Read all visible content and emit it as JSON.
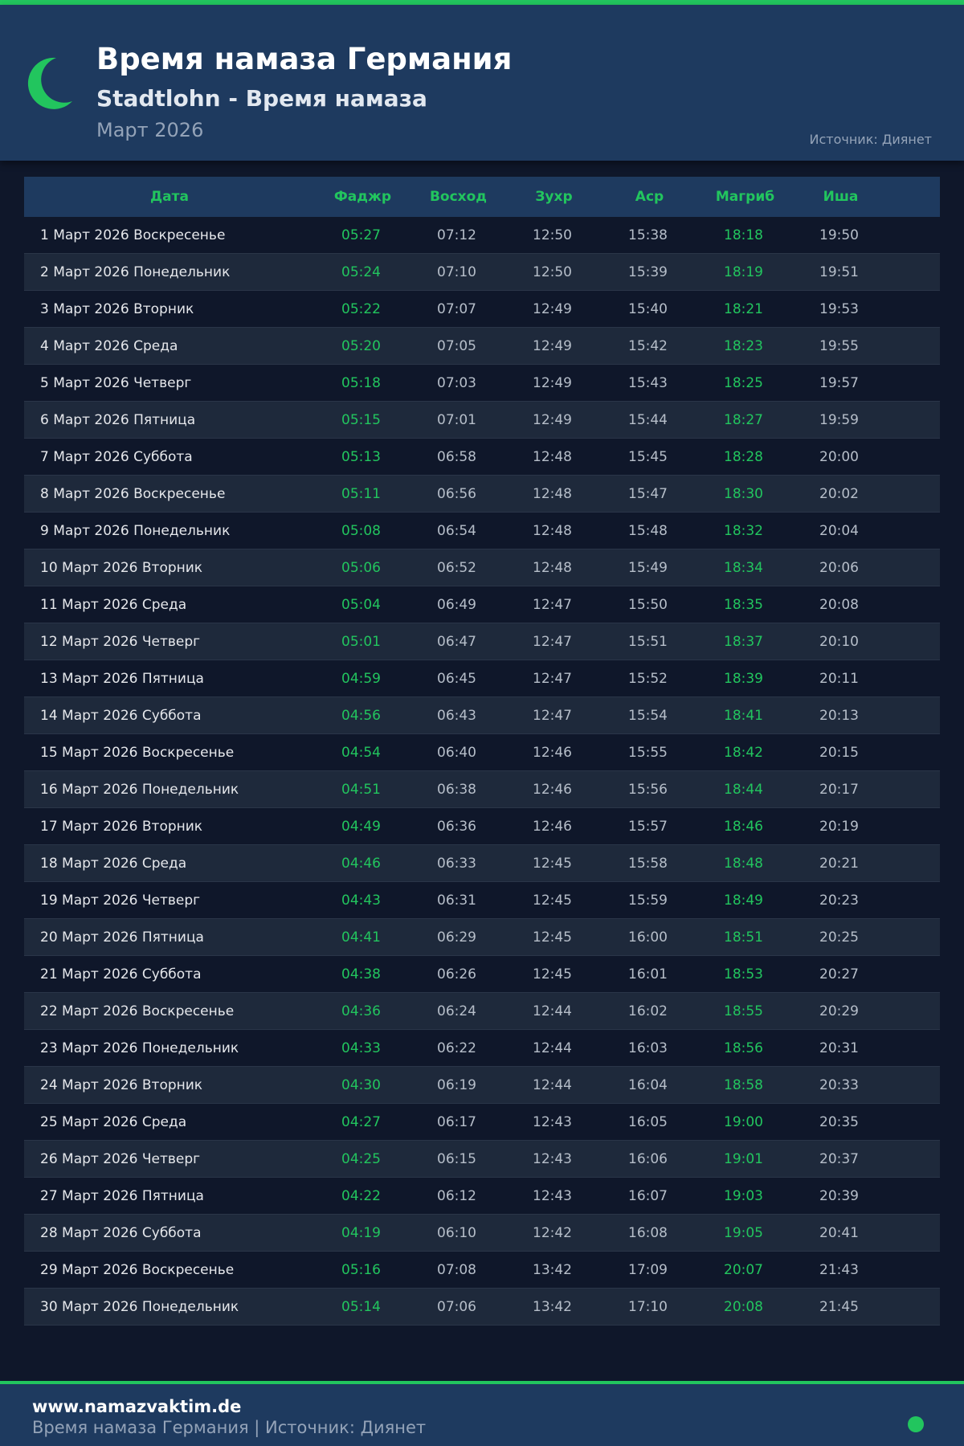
{
  "header": {
    "title": "Время намаза Германия",
    "subtitle": "Stadtlohn - Время намаза",
    "month": "Март 2026",
    "source": "Источник: Диянет"
  },
  "colors": {
    "accent": "#22c55e",
    "header_bg": "#1e3a5f",
    "page_bg": "#0f172a"
  },
  "icons": {
    "logo": "crescent-moon-icon",
    "status": "status-dot-icon"
  },
  "table": {
    "columns": [
      "Дата",
      "Фаджр",
      "Восход",
      "Зухр",
      "Аср",
      "Магриб",
      "Иша"
    ],
    "rows": [
      [
        "1 Март 2026 Воскресенье",
        "05:27",
        "07:12",
        "12:50",
        "15:38",
        "18:18",
        "19:50"
      ],
      [
        "2 Март 2026 Понедельник",
        "05:24",
        "07:10",
        "12:50",
        "15:39",
        "18:19",
        "19:51"
      ],
      [
        "3 Март 2026 Вторник",
        "05:22",
        "07:07",
        "12:49",
        "15:40",
        "18:21",
        "19:53"
      ],
      [
        "4 Март 2026 Среда",
        "05:20",
        "07:05",
        "12:49",
        "15:42",
        "18:23",
        "19:55"
      ],
      [
        "5 Март 2026 Четверг",
        "05:18",
        "07:03",
        "12:49",
        "15:43",
        "18:25",
        "19:57"
      ],
      [
        "6 Март 2026 Пятница",
        "05:15",
        "07:01",
        "12:49",
        "15:44",
        "18:27",
        "19:59"
      ],
      [
        "7 Март 2026 Суббота",
        "05:13",
        "06:58",
        "12:48",
        "15:45",
        "18:28",
        "20:00"
      ],
      [
        "8 Март 2026 Воскресенье",
        "05:11",
        "06:56",
        "12:48",
        "15:47",
        "18:30",
        "20:02"
      ],
      [
        "9 Март 2026 Понедельник",
        "05:08",
        "06:54",
        "12:48",
        "15:48",
        "18:32",
        "20:04"
      ],
      [
        "10 Март 2026 Вторник",
        "05:06",
        "06:52",
        "12:48",
        "15:49",
        "18:34",
        "20:06"
      ],
      [
        "11 Март 2026 Среда",
        "05:04",
        "06:49",
        "12:47",
        "15:50",
        "18:35",
        "20:08"
      ],
      [
        "12 Март 2026 Четверг",
        "05:01",
        "06:47",
        "12:47",
        "15:51",
        "18:37",
        "20:10"
      ],
      [
        "13 Март 2026 Пятница",
        "04:59",
        "06:45",
        "12:47",
        "15:52",
        "18:39",
        "20:11"
      ],
      [
        "14 Март 2026 Суббота",
        "04:56",
        "06:43",
        "12:47",
        "15:54",
        "18:41",
        "20:13"
      ],
      [
        "15 Март 2026 Воскресенье",
        "04:54",
        "06:40",
        "12:46",
        "15:55",
        "18:42",
        "20:15"
      ],
      [
        "16 Март 2026 Понедельник",
        "04:51",
        "06:38",
        "12:46",
        "15:56",
        "18:44",
        "20:17"
      ],
      [
        "17 Март 2026 Вторник",
        "04:49",
        "06:36",
        "12:46",
        "15:57",
        "18:46",
        "20:19"
      ],
      [
        "18 Март 2026 Среда",
        "04:46",
        "06:33",
        "12:45",
        "15:58",
        "18:48",
        "20:21"
      ],
      [
        "19 Март 2026 Четверг",
        "04:43",
        "06:31",
        "12:45",
        "15:59",
        "18:49",
        "20:23"
      ],
      [
        "20 Март 2026 Пятница",
        "04:41",
        "06:29",
        "12:45",
        "16:00",
        "18:51",
        "20:25"
      ],
      [
        "21 Март 2026 Суббота",
        "04:38",
        "06:26",
        "12:45",
        "16:01",
        "18:53",
        "20:27"
      ],
      [
        "22 Март 2026 Воскресенье",
        "04:36",
        "06:24",
        "12:44",
        "16:02",
        "18:55",
        "20:29"
      ],
      [
        "23 Март 2026 Понедельник",
        "04:33",
        "06:22",
        "12:44",
        "16:03",
        "18:56",
        "20:31"
      ],
      [
        "24 Март 2026 Вторник",
        "04:30",
        "06:19",
        "12:44",
        "16:04",
        "18:58",
        "20:33"
      ],
      [
        "25 Март 2026 Среда",
        "04:27",
        "06:17",
        "12:43",
        "16:05",
        "19:00",
        "20:35"
      ],
      [
        "26 Март 2026 Четверг",
        "04:25",
        "06:15",
        "12:43",
        "16:06",
        "19:01",
        "20:37"
      ],
      [
        "27 Март 2026 Пятница",
        "04:22",
        "06:12",
        "12:43",
        "16:07",
        "19:03",
        "20:39"
      ],
      [
        "28 Март 2026 Суббота",
        "04:19",
        "06:10",
        "12:42",
        "16:08",
        "19:05",
        "20:41"
      ],
      [
        "29 Март 2026 Воскресенье",
        "05:16",
        "07:08",
        "13:42",
        "17:09",
        "20:07",
        "21:43"
      ],
      [
        "30 Март 2026 Понедельник",
        "05:14",
        "07:06",
        "13:42",
        "17:10",
        "20:08",
        "21:45"
      ]
    ]
  },
  "footer": {
    "site": "www.namazvaktim.de",
    "tagline": "Время намаза Германия | Источник: Диянет"
  }
}
